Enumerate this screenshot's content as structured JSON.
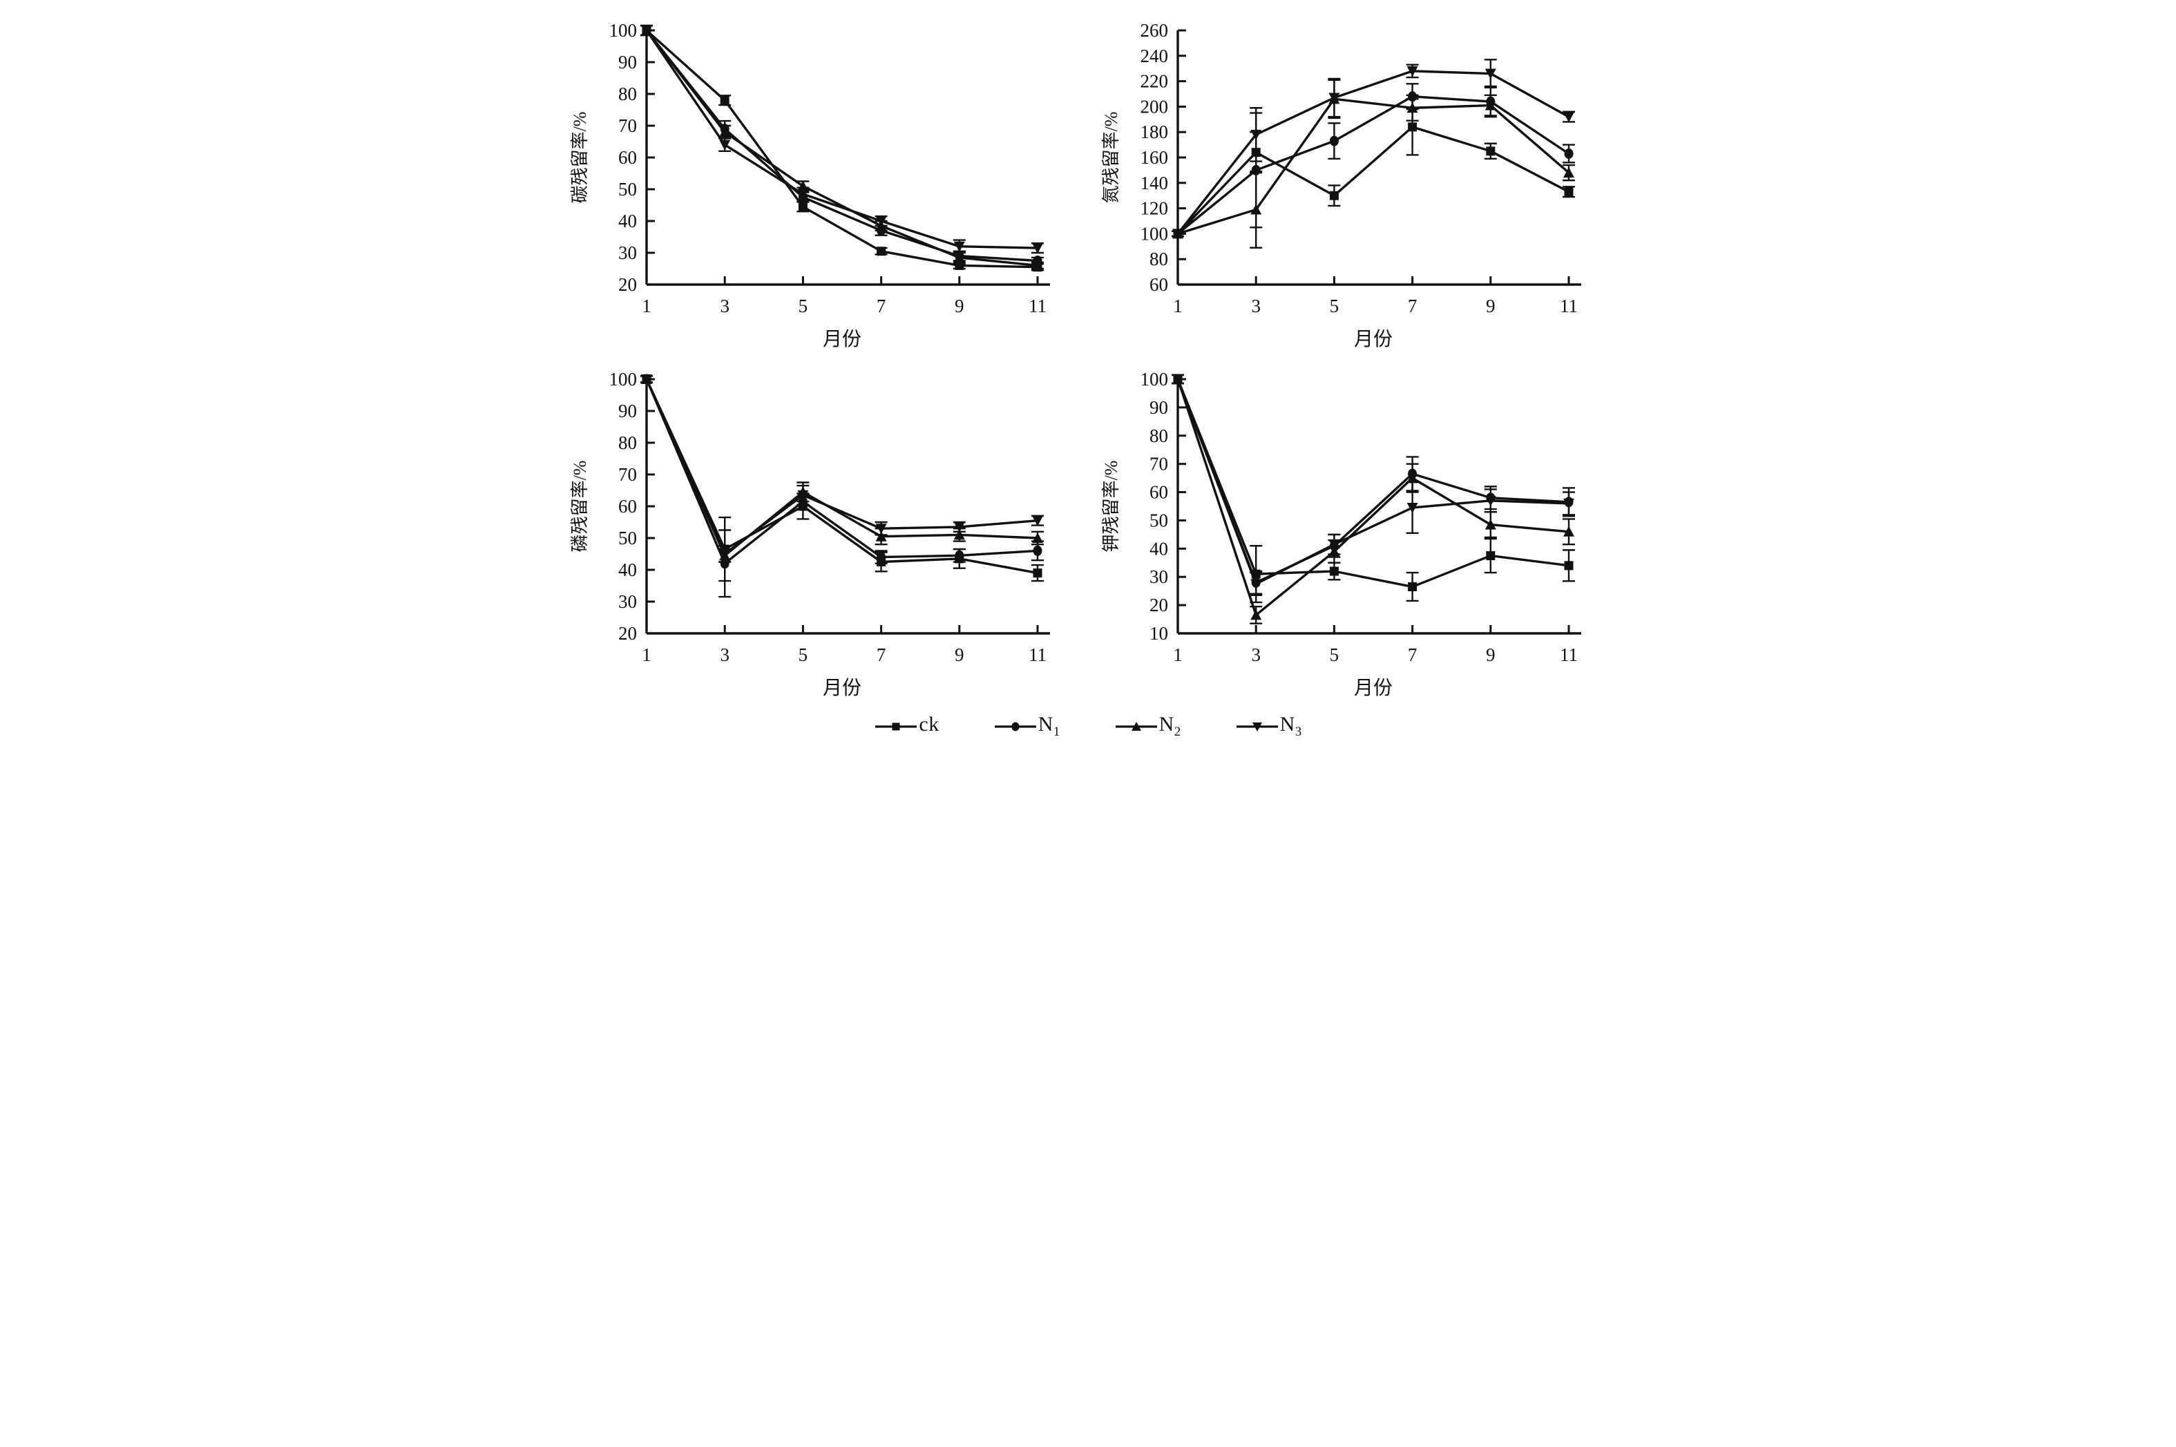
{
  "legend": {
    "items": [
      {
        "label": "ck",
        "marker": "square"
      },
      {
        "label": "N",
        "subscript": "1",
        "marker": "circle"
      },
      {
        "label": "N",
        "subscript": "2",
        "marker": "triangle-up"
      },
      {
        "label": "N",
        "subscript": "3",
        "marker": "triangle-down"
      }
    ]
  },
  "chart_data": [
    {
      "type": "line",
      "position": "top-left",
      "title": "",
      "ylabel": "碳残留率/%",
      "xlabel": "月份",
      "ylim": [
        20,
        100
      ],
      "ytick_step": 10,
      "xlim": [
        1,
        11
      ],
      "x": [
        1,
        3,
        5,
        7,
        9,
        11
      ],
      "grid": false,
      "legend_position": "shared-bottom",
      "series": [
        {
          "name": "ck",
          "marker": "square",
          "values": [
            100,
            78,
            44.5,
            30.5,
            26,
            25.5
          ],
          "errors": [
            1.5,
            1.5,
            1.5,
            1,
            1,
            1
          ]
        },
        {
          "name": "N1",
          "marker": "circle",
          "values": [
            100,
            69,
            47.5,
            37,
            29,
            27.5
          ],
          "errors": [
            1.5,
            2.5,
            1.5,
            1.5,
            1.5,
            1
          ]
        },
        {
          "name": "N2",
          "marker": "triangle-up",
          "values": [
            100,
            68,
            51,
            38.5,
            28.5,
            26
          ],
          "errors": [
            1.5,
            2,
            1.5,
            1.5,
            2,
            1
          ]
        },
        {
          "name": "N3",
          "marker": "triangle-down",
          "values": [
            100,
            64,
            48.5,
            40,
            32,
            31.5
          ],
          "errors": [
            1.5,
            2,
            2,
            1.5,
            2,
            1.5
          ]
        }
      ]
    },
    {
      "type": "line",
      "position": "top-right",
      "title": "",
      "ylabel": "氮残留率/%",
      "xlabel": "月份",
      "ylim": [
        60,
        260
      ],
      "ytick_step": 20,
      "xlim": [
        1,
        11
      ],
      "x": [
        1,
        3,
        5,
        7,
        9,
        11
      ],
      "grid": false,
      "legend_position": "shared-bottom",
      "series": [
        {
          "name": "ck",
          "marker": "square",
          "values": [
            100,
            164,
            130,
            184,
            165,
            133
          ],
          "errors": [
            2,
            16,
            8,
            22,
            6,
            4
          ]
        },
        {
          "name": "N1",
          "marker": "circle",
          "values": [
            100,
            150,
            173,
            208,
            204,
            163
          ],
          "errors": [
            2,
            45,
            14,
            10,
            12,
            7
          ]
        },
        {
          "name": "N2",
          "marker": "triangle-up",
          "values": [
            100,
            119,
            206,
            199,
            201,
            148
          ],
          "errors": [
            2,
            30,
            15,
            10,
            8,
            6
          ]
        },
        {
          "name": "N3",
          "marker": "triangle-down",
          "values": [
            100,
            178,
            207,
            228,
            226,
            192
          ],
          "errors": [
            2,
            21,
            15,
            5,
            11,
            4
          ]
        }
      ]
    },
    {
      "type": "line",
      "position": "bottom-left",
      "title": "",
      "ylabel": "磷残留率/%",
      "xlabel": "月份",
      "ylim": [
        20,
        100
      ],
      "ytick_step": 10,
      "xlim": [
        1,
        11
      ],
      "x": [
        1,
        3,
        5,
        7,
        9,
        11
      ],
      "grid": false,
      "legend_position": "shared-bottom",
      "series": [
        {
          "name": "ck",
          "marker": "square",
          "values": [
            100,
            46.5,
            60,
            42.5,
            43.5,
            39
          ],
          "errors": [
            1,
            10,
            4,
            3,
            3,
            2.5
          ]
        },
        {
          "name": "N1",
          "marker": "circle",
          "values": [
            100,
            42,
            61.5,
            44,
            44.5,
            46
          ],
          "errors": [
            1,
            10.5,
            2.5,
            2,
            2,
            3
          ]
        },
        {
          "name": "N2",
          "marker": "triangle-up",
          "values": [
            100,
            44.5,
            64.5,
            50.5,
            51,
            50
          ],
          "errors": [
            1,
            2,
            3,
            2.5,
            2,
            2
          ]
        },
        {
          "name": "N3",
          "marker": "triangle-down",
          "values": [
            100,
            45,
            63.5,
            53,
            53.5,
            55.5
          ],
          "errors": [
            1,
            2.5,
            3,
            2,
            1.5,
            1.5
          ]
        }
      ]
    },
    {
      "type": "line",
      "position": "bottom-right",
      "title": "",
      "ylabel": "钾残留率/%",
      "xlabel": "月份",
      "ylim": [
        10,
        100
      ],
      "ytick_step": 10,
      "xlim": [
        1,
        11
      ],
      "x": [
        1,
        3,
        5,
        7,
        9,
        11
      ],
      "grid": false,
      "legend_position": "shared-bottom",
      "series": [
        {
          "name": "ck",
          "marker": "square",
          "values": [
            100,
            31,
            32,
            26.5,
            37.5,
            34
          ],
          "errors": [
            1.5,
            10,
            3,
            5,
            6,
            5.5
          ]
        },
        {
          "name": "N1",
          "marker": "circle",
          "values": [
            100,
            28,
            41,
            66.5,
            58,
            56.5
          ],
          "errors": [
            1.5,
            4,
            4,
            6,
            4,
            5
          ]
        },
        {
          "name": "N2",
          "marker": "triangle-up",
          "values": [
            100,
            16.5,
            39,
            65,
            48.5,
            46
          ],
          "errors": [
            1.5,
            3,
            4,
            5,
            4.5,
            4.5
          ]
        },
        {
          "name": "N3",
          "marker": "triangle-down",
          "values": [
            100,
            27.5,
            41.5,
            54.5,
            57,
            56
          ],
          "errors": [
            1.5,
            4,
            3.5,
            9,
            4,
            4
          ]
        }
      ]
    }
  ]
}
